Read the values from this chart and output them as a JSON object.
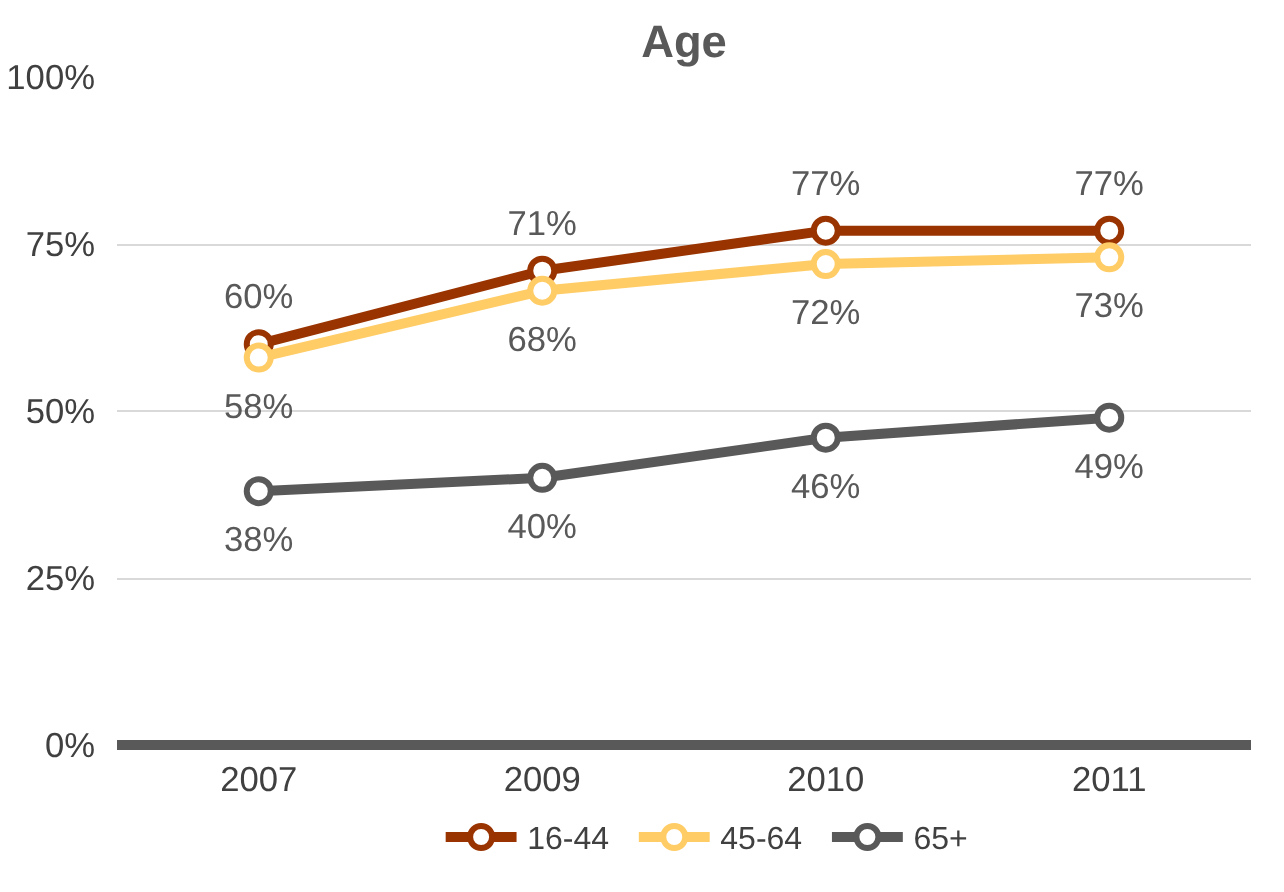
{
  "chart_data": {
    "type": "line",
    "title": "Age",
    "categories": [
      "2007",
      "2009",
      "2010",
      "2011"
    ],
    "series": [
      {
        "name": "16-44",
        "color": "#993300",
        "values": [
          60,
          71,
          77,
          77
        ],
        "value_labels": [
          "60%",
          "71%",
          "77%",
          "77%"
        ]
      },
      {
        "name": "45-64",
        "color": "#ffcc66",
        "values": [
          58,
          68,
          72,
          73
        ],
        "value_labels": [
          "58%",
          "68%",
          "72%",
          "73%"
        ]
      },
      {
        "name": "65+",
        "color": "#595959",
        "values": [
          38,
          40,
          46,
          49
        ],
        "value_labels": [
          "38%",
          "40%",
          "46%",
          "49%"
        ]
      }
    ],
    "ylim": [
      0,
      100
    ],
    "yticks": [
      {
        "value": 0,
        "label": "0%"
      },
      {
        "value": 25,
        "label": "25%"
      },
      {
        "value": 50,
        "label": "50%"
      },
      {
        "value": 75,
        "label": "75%"
      },
      {
        "value": 100,
        "label": "100%"
      }
    ],
    "grid": "y",
    "legend": "bottom",
    "marker": "circle",
    "line_style": "solid"
  }
}
